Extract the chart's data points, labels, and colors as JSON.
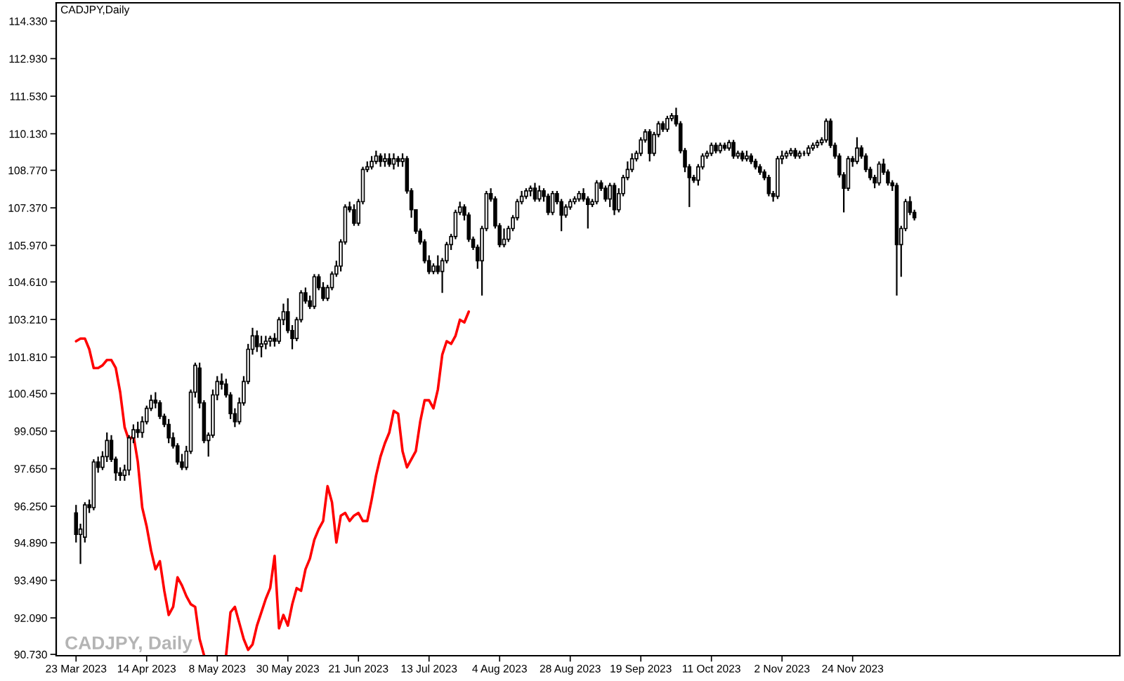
{
  "chart_data": {
    "type": "candlestick",
    "title": "CADJPY,Daily",
    "categories": [
      "23 Mar 2023",
      null,
      null,
      null,
      null,
      null,
      null,
      null,
      null,
      null,
      null,
      null,
      null,
      null,
      null,
      null,
      "14 Apr 2023",
      null,
      null,
      null,
      null,
      null,
      null,
      null,
      null,
      null,
      null,
      null,
      null,
      null,
      null,
      null,
      "8 May 2023",
      null,
      null,
      null,
      null,
      null,
      null,
      null,
      null,
      null,
      null,
      null,
      null,
      null,
      null,
      null,
      "30 May 2023",
      null,
      null,
      null,
      null,
      null,
      null,
      null,
      null,
      null,
      null,
      null,
      null,
      null,
      null,
      null,
      "21 Jun 2023",
      null,
      null,
      null,
      null,
      null,
      null,
      null,
      null,
      null,
      null,
      null,
      null,
      null,
      null,
      null,
      "13 Jul 2023",
      null,
      null,
      null,
      null,
      null,
      null,
      null,
      null,
      null,
      null,
      null,
      null,
      null,
      null,
      null,
      "4 Aug 2023",
      null,
      null,
      null,
      null,
      null,
      null,
      null,
      null,
      null,
      null,
      null,
      null,
      null,
      null,
      null,
      "28 Aug 2023",
      null,
      null,
      null,
      null,
      null,
      null,
      null,
      null,
      null,
      null,
      null,
      null,
      null,
      null,
      null,
      "19 Sep 2023",
      null,
      null,
      null,
      null,
      null,
      null,
      null,
      null,
      null,
      null,
      null,
      null,
      null,
      null,
      null,
      "11 Oct 2023",
      null,
      null,
      null,
      null,
      null,
      null,
      null,
      null,
      null,
      null,
      null,
      null,
      null,
      null,
      null,
      "2 Nov 2023",
      null,
      null,
      null,
      null,
      null,
      null,
      null,
      null,
      null,
      null,
      null,
      null,
      null,
      null,
      null,
      "24 Nov 2023",
      null,
      null,
      null,
      null,
      null,
      null,
      null,
      null,
      null,
      null,
      null,
      null,
      null,
      null
    ],
    "ohlc": [
      [
        96.0,
        96.3,
        94.9,
        95.2
      ],
      [
        95.2,
        95.6,
        94.1,
        95.4
      ],
      [
        95.1,
        96.4,
        94.9,
        96.3
      ],
      [
        96.3,
        96.5,
        96.0,
        96.2
      ],
      [
        96.2,
        98.0,
        96.1,
        97.9
      ],
      [
        97.9,
        98.1,
        97.5,
        97.7
      ],
      [
        97.7,
        98.3,
        97.6,
        98.1
      ],
      [
        98.1,
        99.0,
        97.9,
        98.7
      ],
      [
        98.7,
        98.9,
        97.9,
        98.0
      ],
      [
        98.0,
        98.1,
        97.2,
        97.5
      ],
      [
        97.5,
        97.7,
        97.2,
        97.4
      ],
      [
        97.4,
        97.8,
        97.2,
        97.6
      ],
      [
        97.6,
        98.9,
        97.4,
        98.8
      ],
      [
        98.8,
        99.3,
        98.6,
        99.1
      ],
      [
        99.1,
        99.4,
        98.8,
        99.0
      ],
      [
        99.0,
        99.6,
        98.8,
        99.4
      ],
      [
        99.4,
        100.0,
        99.3,
        99.9
      ],
      [
        99.9,
        100.4,
        99.8,
        100.2
      ],
      [
        100.2,
        100.5,
        99.9,
        100.1
      ],
      [
        100.1,
        100.2,
        99.5,
        99.6
      ],
      [
        99.6,
        99.7,
        99.2,
        99.3
      ],
      [
        99.3,
        99.5,
        98.6,
        98.8
      ],
      [
        98.8,
        99.0,
        98.4,
        98.5
      ],
      [
        98.5,
        98.6,
        97.8,
        97.9
      ],
      [
        97.9,
        98.2,
        97.6,
        97.7
      ],
      [
        97.7,
        98.5,
        97.6,
        98.3
      ],
      [
        98.3,
        100.6,
        98.2,
        100.5
      ],
      [
        100.5,
        101.6,
        100.3,
        101.5
      ],
      [
        101.4,
        101.6,
        99.9,
        100.1
      ],
      [
        100.1,
        100.2,
        98.6,
        98.7
      ],
      [
        98.7,
        99.0,
        98.1,
        98.9
      ],
      [
        98.9,
        100.6,
        98.8,
        100.4
      ],
      [
        100.4,
        101.1,
        100.2,
        100.9
      ],
      [
        100.9,
        101.2,
        100.6,
        100.8
      ],
      [
        100.8,
        101.0,
        100.3,
        100.4
      ],
      [
        100.4,
        100.5,
        99.5,
        99.7
      ],
      [
        99.7,
        99.9,
        99.2,
        99.4
      ],
      [
        99.4,
        100.3,
        99.3,
        100.1
      ],
      [
        100.1,
        101.1,
        100.0,
        100.9
      ],
      [
        100.9,
        102.3,
        100.8,
        102.1
      ],
      [
        102.1,
        102.9,
        101.9,
        102.6
      ],
      [
        102.6,
        102.8,
        102.0,
        102.2
      ],
      [
        102.2,
        102.6,
        101.8,
        102.3
      ],
      [
        102.3,
        102.6,
        102.1,
        102.4
      ],
      [
        102.4,
        102.6,
        102.2,
        102.5
      ],
      [
        102.5,
        102.7,
        102.2,
        102.4
      ],
      [
        102.4,
        103.3,
        102.3,
        103.2
      ],
      [
        103.2,
        103.8,
        103.0,
        103.5
      ],
      [
        103.5,
        104.0,
        102.7,
        102.8
      ],
      [
        102.8,
        103.0,
        102.1,
        102.5
      ],
      [
        102.5,
        103.3,
        102.4,
        103.2
      ],
      [
        103.2,
        104.3,
        103.1,
        104.2
      ],
      [
        104.2,
        104.4,
        103.8,
        103.9
      ],
      [
        103.9,
        104.1,
        103.6,
        103.7
      ],
      [
        103.7,
        104.9,
        103.6,
        104.8
      ],
      [
        104.8,
        104.9,
        104.3,
        104.4
      ],
      [
        104.4,
        104.6,
        103.9,
        104.0
      ],
      [
        104.0,
        104.5,
        103.9,
        104.4
      ],
      [
        104.4,
        105.0,
        104.3,
        104.9
      ],
      [
        104.9,
        105.4,
        104.8,
        105.2
      ],
      [
        105.2,
        106.2,
        105.0,
        106.1
      ],
      [
        106.1,
        107.5,
        106.0,
        107.4
      ],
      [
        107.4,
        107.6,
        107.2,
        107.3
      ],
      [
        107.3,
        107.5,
        106.7,
        106.8
      ],
      [
        106.8,
        107.7,
        106.7,
        107.6
      ],
      [
        107.6,
        108.9,
        107.5,
        108.8
      ],
      [
        108.8,
        109.1,
        108.7,
        108.9
      ],
      [
        108.9,
        109.3,
        108.8,
        109.1
      ],
      [
        109.1,
        109.5,
        109.0,
        109.3
      ],
      [
        109.3,
        109.4,
        108.9,
        109.1
      ],
      [
        109.1,
        109.4,
        108.9,
        109.2
      ],
      [
        109.2,
        109.4,
        108.9,
        109.0
      ],
      [
        109.0,
        109.4,
        108.8,
        109.2
      ],
      [
        109.2,
        109.3,
        108.9,
        109.1
      ],
      [
        109.1,
        109.4,
        108.9,
        109.2
      ],
      [
        109.2,
        109.3,
        107.9,
        108.0
      ],
      [
        108.0,
        108.1,
        107.0,
        107.3
      ],
      [
        107.3,
        107.3,
        106.4,
        106.5
      ],
      [
        106.5,
        106.6,
        106.0,
        106.1
      ],
      [
        106.1,
        106.2,
        105.3,
        105.4
      ],
      [
        105.4,
        105.6,
        104.9,
        105.0
      ],
      [
        105.0,
        105.3,
        104.9,
        105.2
      ],
      [
        105.2,
        105.6,
        104.9,
        105.0
      ],
      [
        105.0,
        105.5,
        104.2,
        105.4
      ],
      [
        105.4,
        106.1,
        105.3,
        106.0
      ],
      [
        106.0,
        106.4,
        105.8,
        106.3
      ],
      [
        106.3,
        107.3,
        106.2,
        107.2
      ],
      [
        107.2,
        107.6,
        107.1,
        107.4
      ],
      [
        107.4,
        107.5,
        106.9,
        107.1
      ],
      [
        107.1,
        107.2,
        106.1,
        106.2
      ],
      [
        106.2,
        106.3,
        105.8,
        105.9
      ],
      [
        105.9,
        106.0,
        105.1,
        105.4
      ],
      [
        105.4,
        106.7,
        104.1,
        106.6
      ],
      [
        106.6,
        108.0,
        106.5,
        107.9
      ],
      [
        107.9,
        108.1,
        107.6,
        107.7
      ],
      [
        107.7,
        107.8,
        106.6,
        106.7
      ],
      [
        106.7,
        106.8,
        105.9,
        106.0
      ],
      [
        106.0,
        106.6,
        105.9,
        106.2
      ],
      [
        106.2,
        106.7,
        106.1,
        106.6
      ],
      [
        106.6,
        107.1,
        106.5,
        107.0
      ],
      [
        107.0,
        107.7,
        106.9,
        107.6
      ],
      [
        107.6,
        108.0,
        107.5,
        107.8
      ],
      [
        107.8,
        108.1,
        107.7,
        108.0
      ],
      [
        108.0,
        108.2,
        107.8,
        108.1
      ],
      [
        108.1,
        108.3,
        107.6,
        107.7
      ],
      [
        107.7,
        108.2,
        107.6,
        108.0
      ],
      [
        108.0,
        108.1,
        107.6,
        107.8
      ],
      [
        107.8,
        107.9,
        107.1,
        107.2
      ],
      [
        107.2,
        108.0,
        107.1,
        107.9
      ],
      [
        107.9,
        108.0,
        107.5,
        107.6
      ],
      [
        107.6,
        107.7,
        106.5,
        107.1
      ],
      [
        107.1,
        107.5,
        107.0,
        107.4
      ],
      [
        107.4,
        107.7,
        107.3,
        107.6
      ],
      [
        107.6,
        107.8,
        107.5,
        107.7
      ],
      [
        107.7,
        108.0,
        107.6,
        107.9
      ],
      [
        107.9,
        108.1,
        107.6,
        107.7
      ],
      [
        107.7,
        107.8,
        106.6,
        107.5
      ],
      [
        107.5,
        107.7,
        107.4,
        107.6
      ],
      [
        107.6,
        108.4,
        107.5,
        108.3
      ],
      [
        108.3,
        108.4,
        108.0,
        108.1
      ],
      [
        108.1,
        108.2,
        107.6,
        107.7
      ],
      [
        107.7,
        108.3,
        107.4,
        108.2
      ],
      [
        108.2,
        108.3,
        107.1,
        107.3
      ],
      [
        107.3,
        108.1,
        107.2,
        107.9
      ],
      [
        107.9,
        108.6,
        107.8,
        108.5
      ],
      [
        108.5,
        109.1,
        108.4,
        108.8
      ],
      [
        108.8,
        109.4,
        108.7,
        109.2
      ],
      [
        109.2,
        109.5,
        109.1,
        109.4
      ],
      [
        109.4,
        110.0,
        109.3,
        109.9
      ],
      [
        109.9,
        110.3,
        109.8,
        110.2
      ],
      [
        110.2,
        110.3,
        109.1,
        109.4
      ],
      [
        109.4,
        110.2,
        109.3,
        110.1
      ],
      [
        110.1,
        110.6,
        110.0,
        110.5
      ],
      [
        110.5,
        110.6,
        110.2,
        110.3
      ],
      [
        110.3,
        110.8,
        110.2,
        110.7
      ],
      [
        110.7,
        110.9,
        110.6,
        110.8
      ],
      [
        110.8,
        111.1,
        110.4,
        110.5
      ],
      [
        110.5,
        110.6,
        109.4,
        109.5
      ],
      [
        109.5,
        109.6,
        108.7,
        108.9
      ],
      [
        108.9,
        109.0,
        107.4,
        108.5
      ],
      [
        108.5,
        108.6,
        108.3,
        108.4
      ],
      [
        108.4,
        109.0,
        108.2,
        108.9
      ],
      [
        108.9,
        109.4,
        108.8,
        109.3
      ],
      [
        109.3,
        109.5,
        109.2,
        109.4
      ],
      [
        109.4,
        109.8,
        109.3,
        109.7
      ],
      [
        109.7,
        109.8,
        109.4,
        109.5
      ],
      [
        109.5,
        109.8,
        109.4,
        109.7
      ],
      [
        109.7,
        109.8,
        109.5,
        109.6
      ],
      [
        109.6,
        109.9,
        109.5,
        109.8
      ],
      [
        109.8,
        109.9,
        109.2,
        109.3
      ],
      [
        109.3,
        109.5,
        109.2,
        109.4
      ],
      [
        109.4,
        109.5,
        109.1,
        109.2
      ],
      [
        109.2,
        109.5,
        109.1,
        109.3
      ],
      [
        109.3,
        109.4,
        109.0,
        109.1
      ],
      [
        109.1,
        109.2,
        108.8,
        108.9
      ],
      [
        108.9,
        109.0,
        108.6,
        108.7
      ],
      [
        108.7,
        108.8,
        108.4,
        108.5
      ],
      [
        108.5,
        108.6,
        107.8,
        107.9
      ],
      [
        107.9,
        108.0,
        107.6,
        107.8
      ],
      [
        107.8,
        109.3,
        107.7,
        109.2
      ],
      [
        109.2,
        109.5,
        109.0,
        109.3
      ],
      [
        109.3,
        109.5,
        109.2,
        109.4
      ],
      [
        109.4,
        109.6,
        109.3,
        109.5
      ],
      [
        109.5,
        109.6,
        109.2,
        109.3
      ],
      [
        109.3,
        109.5,
        109.2,
        109.4
      ],
      [
        109.4,
        109.5,
        109.3,
        109.4
      ],
      [
        109.4,
        109.7,
        109.3,
        109.6
      ],
      [
        109.6,
        109.8,
        109.5,
        109.7
      ],
      [
        109.7,
        109.9,
        109.6,
        109.8
      ],
      [
        109.8,
        110.0,
        109.7,
        109.9
      ],
      [
        109.9,
        110.7,
        109.8,
        110.6
      ],
      [
        110.6,
        110.7,
        109.6,
        109.7
      ],
      [
        109.7,
        109.8,
        109.2,
        109.3
      ],
      [
        109.3,
        109.4,
        108.5,
        108.6
      ],
      [
        108.6,
        108.7,
        107.2,
        108.1
      ],
      [
        108.1,
        109.3,
        108.0,
        109.2
      ],
      [
        109.2,
        109.3,
        108.9,
        109.1
      ],
      [
        109.1,
        110.0,
        109.0,
        109.6
      ],
      [
        109.6,
        109.7,
        109.2,
        109.3
      ],
      [
        109.3,
        109.4,
        108.7,
        108.8
      ],
      [
        108.8,
        108.9,
        108.4,
        108.5
      ],
      [
        108.5,
        108.6,
        108.1,
        108.3
      ],
      [
        108.3,
        109.1,
        108.2,
        109.0
      ],
      [
        109.0,
        109.2,
        108.6,
        108.7
      ],
      [
        108.7,
        108.8,
        108.2,
        108.3
      ],
      [
        108.3,
        108.4,
        108.0,
        108.2
      ],
      [
        108.2,
        108.3,
        104.1,
        106.0
      ],
      [
        106.0,
        106.7,
        104.8,
        106.6
      ],
      [
        106.6,
        107.7,
        106.5,
        107.6
      ],
      [
        107.6,
        107.8,
        107.1,
        107.2
      ],
      [
        107.2,
        107.3,
        106.9,
        107.0
      ]
    ],
    "series": [
      {
        "type": "line",
        "color": "#ff0000",
        "values": [
          102.4,
          102.5,
          102.5,
          102.1,
          101.4,
          101.4,
          101.5,
          101.7,
          101.7,
          101.4,
          100.5,
          99.2,
          98.7,
          98.9,
          97.9,
          96.2,
          95.5,
          94.6,
          93.9,
          94.2,
          93.1,
          92.2,
          92.5,
          93.6,
          93.3,
          92.9,
          92.6,
          92.5,
          91.3,
          90.7,
          null,
          null,
          null,
          null,
          90.7,
          92.3,
          92.5,
          91.9,
          91.3,
          90.9,
          91.1,
          91.8,
          92.3,
          92.8,
          93.2,
          94.4,
          91.7,
          92.2,
          91.8,
          92.6,
          93.2,
          93.1,
          93.9,
          94.3,
          95.0,
          95.4,
          95.7,
          97.0,
          96.4,
          94.9,
          95.9,
          96.0,
          95.7,
          95.9,
          96.0,
          95.7,
          95.7,
          96.5,
          97.4,
          98.1,
          98.6,
          99.0,
          99.8,
          99.7,
          98.3,
          97.7,
          98.0,
          98.3,
          99.4,
          100.2,
          100.2,
          99.9,
          100.6,
          101.9,
          102.4,
          102.3,
          102.6,
          103.2,
          103.1,
          103.5,
          null,
          null,
          null,
          null,
          null,
          null,
          null,
          null,
          null,
          null,
          null,
          null,
          null,
          null,
          null,
          null,
          null,
          null,
          null,
          null,
          null,
          null,
          null,
          null,
          null,
          null,
          null,
          null,
          null,
          null,
          null,
          null,
          null,
          null,
          null,
          null,
          null,
          null,
          null,
          null,
          null,
          null,
          null,
          null,
          null,
          null,
          null,
          null,
          null,
          null,
          null,
          null,
          null,
          null,
          null,
          null,
          null,
          null,
          null,
          null,
          null,
          null,
          null,
          null,
          null,
          null,
          null,
          null,
          null,
          null,
          null,
          null,
          null,
          null,
          null,
          null,
          null,
          null,
          null,
          null,
          null,
          null,
          null,
          null,
          null,
          null,
          null,
          null,
          null,
          null,
          null,
          null,
          null,
          null,
          null,
          null,
          null,
          null,
          null,
          null,
          null
        ]
      }
    ],
    "ylim": [
      90.68,
      115.01
    ],
    "yticks": [
      {
        "value": 114.33,
        "label": "114.330"
      },
      {
        "value": 112.93,
        "label": "112.930"
      },
      {
        "value": 111.53,
        "label": "111.530"
      },
      {
        "value": 110.13,
        "label": "110.130"
      },
      {
        "value": 108.77,
        "label": "108.770"
      },
      {
        "value": 107.37,
        "label": "107.370"
      },
      {
        "value": 105.97,
        "label": "105.970"
      },
      {
        "value": 104.61,
        "label": "104.610"
      },
      {
        "value": 103.21,
        "label": "103.210"
      },
      {
        "value": 101.81,
        "label": "101.810"
      },
      {
        "value": 100.45,
        "label": "100.450"
      },
      {
        "value": 99.05,
        "label": "99.050"
      },
      {
        "value": 97.65,
        "label": "97.650"
      },
      {
        "value": 96.25,
        "label": "96.250"
      },
      {
        "value": 94.89,
        "label": "94.890"
      },
      {
        "value": 93.49,
        "label": "93.490"
      },
      {
        "value": 92.09,
        "label": "92.090"
      },
      {
        "value": 90.73,
        "label": "90.730"
      }
    ],
    "annotations": [
      "CADJPY, Daily"
    ]
  }
}
